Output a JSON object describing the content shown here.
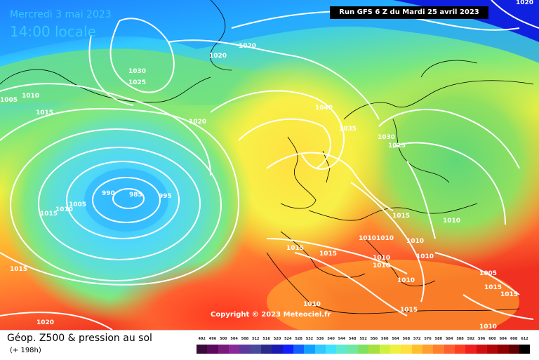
{
  "header": {
    "valid_date": "Mercredi 3 mai 2023",
    "valid_time": "14:00 locale",
    "run_info": "Run GFS 6 Z du Mardi 25 avril 2023"
  },
  "copyright": "Copyright © 2023 Meteociel.fr",
  "footer": {
    "title": "Géop. Z500 & pression au sol",
    "forecast_hour": "(+ 198h)"
  },
  "scale": {
    "labels": [
      "492",
      "496",
      "500",
      "504",
      "508",
      "512",
      "516",
      "520",
      "524",
      "528",
      "532",
      "536",
      "540",
      "544",
      "548",
      "552",
      "556",
      "560",
      "564",
      "568",
      "572",
      "576",
      "580",
      "584",
      "588",
      "592",
      "596",
      "600",
      "604",
      "608",
      "612"
    ],
    "colors": [
      "#3a0a3a",
      "#5a0a5a",
      "#7a1a7a",
      "#8a2a9a",
      "#5a3a9a",
      "#4a4a9a",
      "#2a2a8a",
      "#1a1ab0",
      "#1020ff",
      "#1060ff",
      "#10a0ff",
      "#30c8ff",
      "#40e0ff",
      "#60e8d0",
      "#70e8a0",
      "#80e060",
      "#a8e040",
      "#d0f040",
      "#f0f040",
      "#ffe040",
      "#ffc030",
      "#ffa030",
      "#ff8030",
      "#ff6030",
      "#ff4020",
      "#f02020",
      "#d01010",
      "#b00808",
      "#900000",
      "#600000",
      "#000000"
    ]
  },
  "isobar_labels": [
    "1020",
    "1020",
    "1020",
    "1030",
    "1025",
    "1010",
    "1005",
    "1015",
    "1020",
    "1040",
    "1035",
    "1030",
    "1025",
    "990",
    "985",
    "995",
    "1005",
    "1010",
    "1015",
    "1015",
    "1015",
    "1015",
    "1010",
    "1010",
    "1010",
    "1010",
    "1010",
    "1010",
    "1010",
    "1010",
    "1015",
    "1005",
    "1015",
    "1015",
    "1010",
    "1015",
    "1010",
    "1020"
  ]
}
